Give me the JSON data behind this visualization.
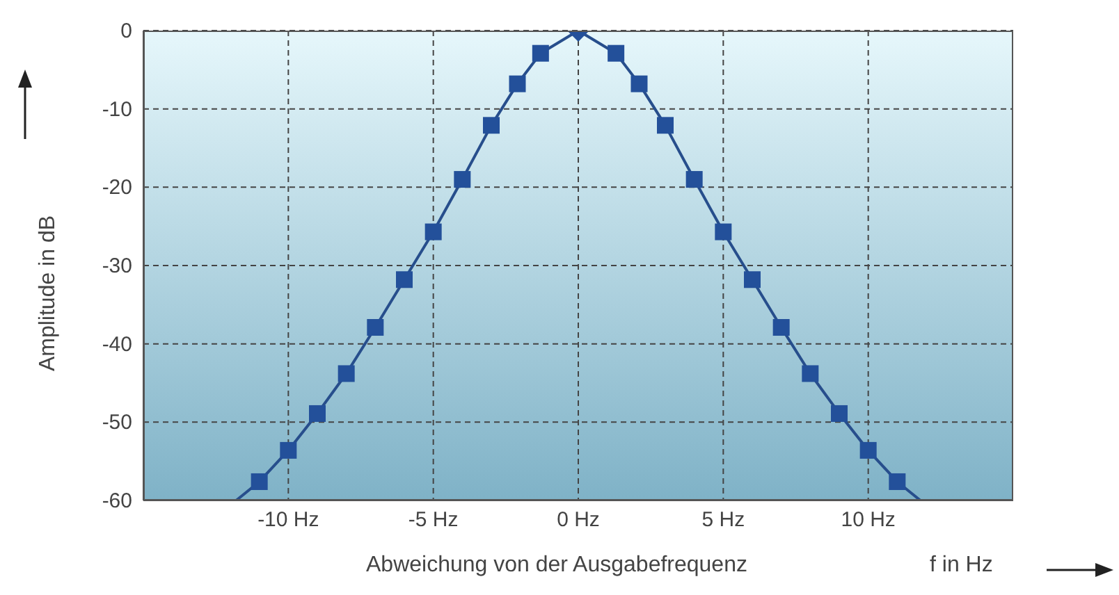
{
  "chart_data": {
    "type": "line",
    "xlabel": "Abweichung von der Ausgabefrequenz",
    "ylabel": "Amplitude in dB",
    "annotations": [
      "f in Hz"
    ],
    "xlim": [
      -15,
      15
    ],
    "ylim": [
      -60,
      0
    ],
    "xticks": [
      {
        "value": -10,
        "label": "-10 Hz"
      },
      {
        "value": -5,
        "label": "-5 Hz"
      },
      {
        "value": 0,
        "label": "0 Hz"
      },
      {
        "value": 5,
        "label": "5 Hz"
      },
      {
        "value": 10,
        "label": "10 Hz"
      }
    ],
    "yticks": [
      -60,
      -50,
      -40,
      -30,
      -20,
      -10,
      0
    ],
    "grid": true,
    "line_style": "solid",
    "series": [
      {
        "type": "line",
        "marker": "none",
        "color": "#274e8c",
        "x": [
          -11.8,
          -11,
          -10,
          -9,
          -8,
          -7,
          -6,
          -5,
          -4,
          -3,
          -2.1,
          -1.3,
          0,
          1.3,
          2.1,
          3,
          4,
          5,
          6,
          7,
          8,
          9,
          10,
          11,
          11.8
        ],
        "values": [
          -60,
          -57.6,
          -53.6,
          -48.9,
          -43.8,
          -37.9,
          -31.8,
          -25.7,
          -19,
          -12.1,
          -6.8,
          -2.9,
          0,
          -2.9,
          -6.8,
          -12.1,
          -19,
          -25.7,
          -31.8,
          -37.9,
          -43.8,
          -48.9,
          -53.6,
          -57.6,
          -60
        ]
      },
      {
        "type": "scatter",
        "marker": "square",
        "color": "#23509a",
        "x": [
          -11,
          -10,
          -9,
          -8,
          -7,
          -6,
          -5,
          -4,
          -3,
          -2.1,
          -1.3,
          1.3,
          2.1,
          3,
          4,
          5,
          6,
          7,
          8,
          9,
          10,
          11
        ],
        "values": [
          -57.6,
          -53.6,
          -48.9,
          -43.8,
          -37.9,
          -31.8,
          -25.7,
          -19,
          -12.1,
          -6.8,
          -2.9,
          -2.9,
          -6.8,
          -12.1,
          -19,
          -25.7,
          -31.8,
          -37.9,
          -43.8,
          -48.9,
          -53.6,
          -57.6
        ]
      },
      {
        "type": "scatter",
        "marker": "diamond",
        "color": "#23509a",
        "x": [
          0
        ],
        "values": [
          0
        ]
      }
    ]
  }
}
